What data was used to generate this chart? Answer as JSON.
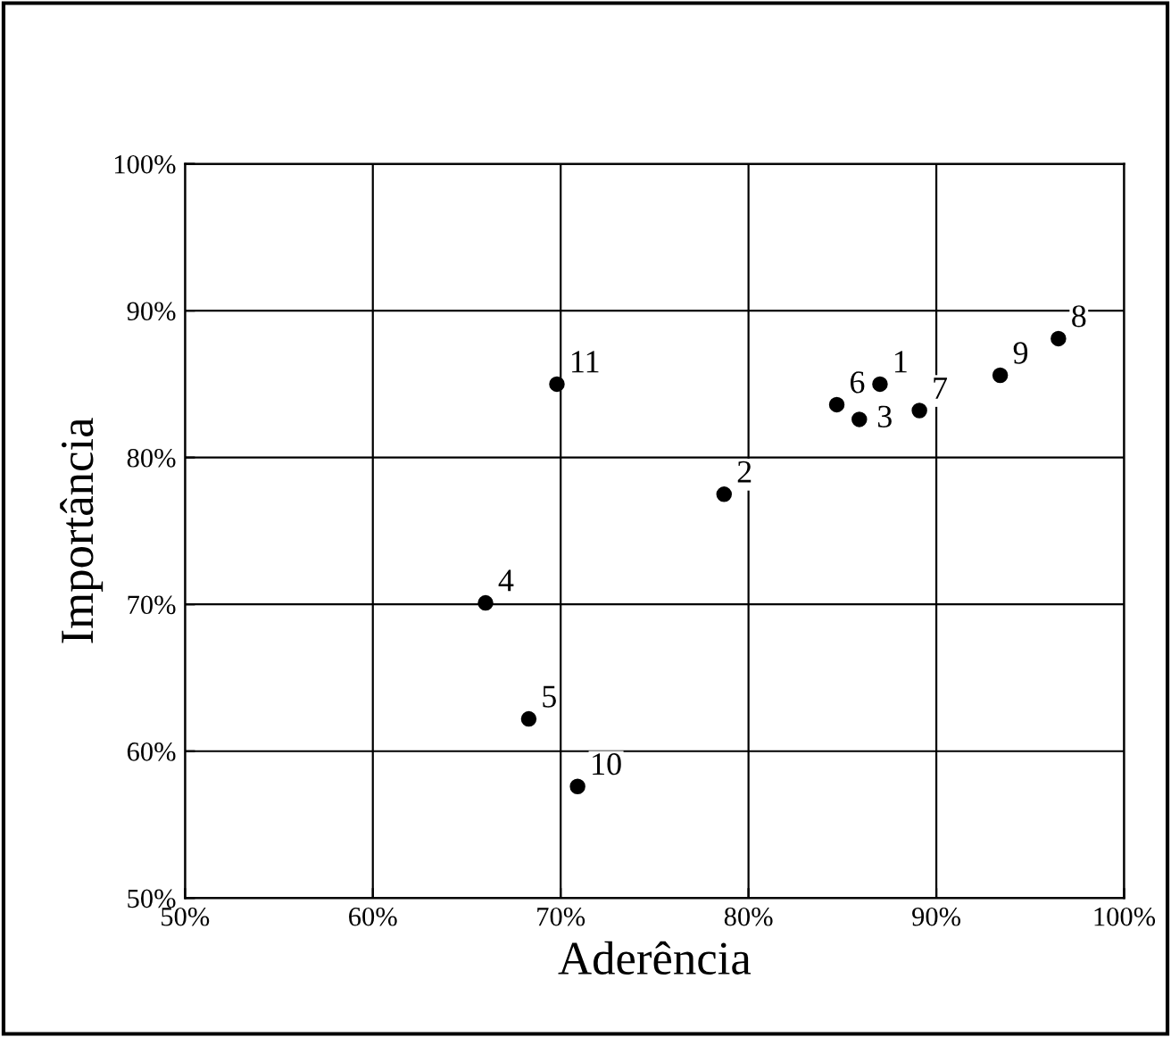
{
  "chart_data": {
    "type": "scatter",
    "xlabel": "Aderência",
    "ylabel": "Importância",
    "x": [
      87.0,
      78.7,
      85.9,
      66.0,
      68.3,
      84.7,
      89.1,
      96.5,
      93.4,
      70.9,
      69.8
    ],
    "values": [
      85.0,
      77.5,
      82.6,
      70.1,
      62.2,
      83.6,
      83.2,
      88.1,
      85.6,
      57.6,
      85.0
    ],
    "annotations": [
      {
        "text": "1",
        "x": 87.0,
        "y": 85.0
      },
      {
        "text": "2",
        "x": 78.7,
        "y": 77.5
      },
      {
        "text": "3",
        "x": 85.9,
        "y": 82.6
      },
      {
        "text": "4",
        "x": 66.0,
        "y": 70.1
      },
      {
        "text": "5",
        "x": 68.3,
        "y": 62.2
      },
      {
        "text": "6",
        "x": 84.7,
        "y": 83.6
      },
      {
        "text": "7",
        "x": 89.1,
        "y": 83.2
      },
      {
        "text": "8",
        "x": 96.5,
        "y": 88.1
      },
      {
        "text": "9",
        "x": 93.4,
        "y": 85.6
      },
      {
        "text": "10",
        "x": 70.9,
        "y": 57.6
      },
      {
        "text": "11",
        "x": 69.8,
        "y": 85.0
      }
    ],
    "color": "#000000",
    "marker": "circle",
    "xlim": [
      50,
      100
    ],
    "ylim": [
      50,
      100
    ],
    "xticks": [
      {
        "value": 50,
        "label": "50%"
      },
      {
        "value": 60,
        "label": "60%"
      },
      {
        "value": 70,
        "label": "70%"
      },
      {
        "value": 80,
        "label": "80%"
      },
      {
        "value": 90,
        "label": "90%"
      },
      {
        "value": 100,
        "label": "100%"
      }
    ],
    "yticks": [
      {
        "value": 50,
        "label": "50%"
      },
      {
        "value": 60,
        "label": "60%"
      },
      {
        "value": 70,
        "label": "70%"
      },
      {
        "value": 80,
        "label": "80%"
      },
      {
        "value": 90,
        "label": "90%"
      },
      {
        "value": 100,
        "label": "100%"
      }
    ],
    "grid": true
  }
}
